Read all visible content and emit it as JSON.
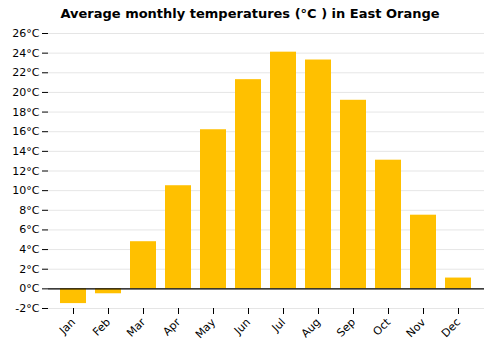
{
  "chart_data": {
    "type": "bar",
    "title": "Average monthly temperatures (°C ) in East Orange",
    "categories": [
      "Jan",
      "Feb",
      "Mar",
      "Apr",
      "May",
      "Jun",
      "Jul",
      "Aug",
      "Sep",
      "Oct",
      "Nov",
      "Dec"
    ],
    "values": [
      -1.5,
      -0.5,
      4.8,
      10.5,
      16.2,
      21.3,
      24.1,
      23.3,
      19.2,
      13.1,
      7.5,
      1.1
    ],
    "color": "#FFC000",
    "ylim": [
      -2,
      26
    ],
    "yticks": [
      {
        "value": -2,
        "label": "-2°C"
      },
      {
        "value": 0,
        "label": "0°C"
      },
      {
        "value": 2,
        "label": "2°C"
      },
      {
        "value": 4,
        "label": "4°C"
      },
      {
        "value": 6,
        "label": "6°C"
      },
      {
        "value": 8,
        "label": "8°C"
      },
      {
        "value": 10,
        "label": "10°C"
      },
      {
        "value": 12,
        "label": "12°C"
      },
      {
        "value": 14,
        "label": "14°C"
      },
      {
        "value": 16,
        "label": "16°C"
      },
      {
        "value": 18,
        "label": "18°C"
      },
      {
        "value": 20,
        "label": "20°C"
      },
      {
        "value": 22,
        "label": "22°C"
      },
      {
        "value": 24,
        "label": "24°C"
      },
      {
        "value": 26,
        "label": "26°C"
      }
    ],
    "grid": true
  }
}
